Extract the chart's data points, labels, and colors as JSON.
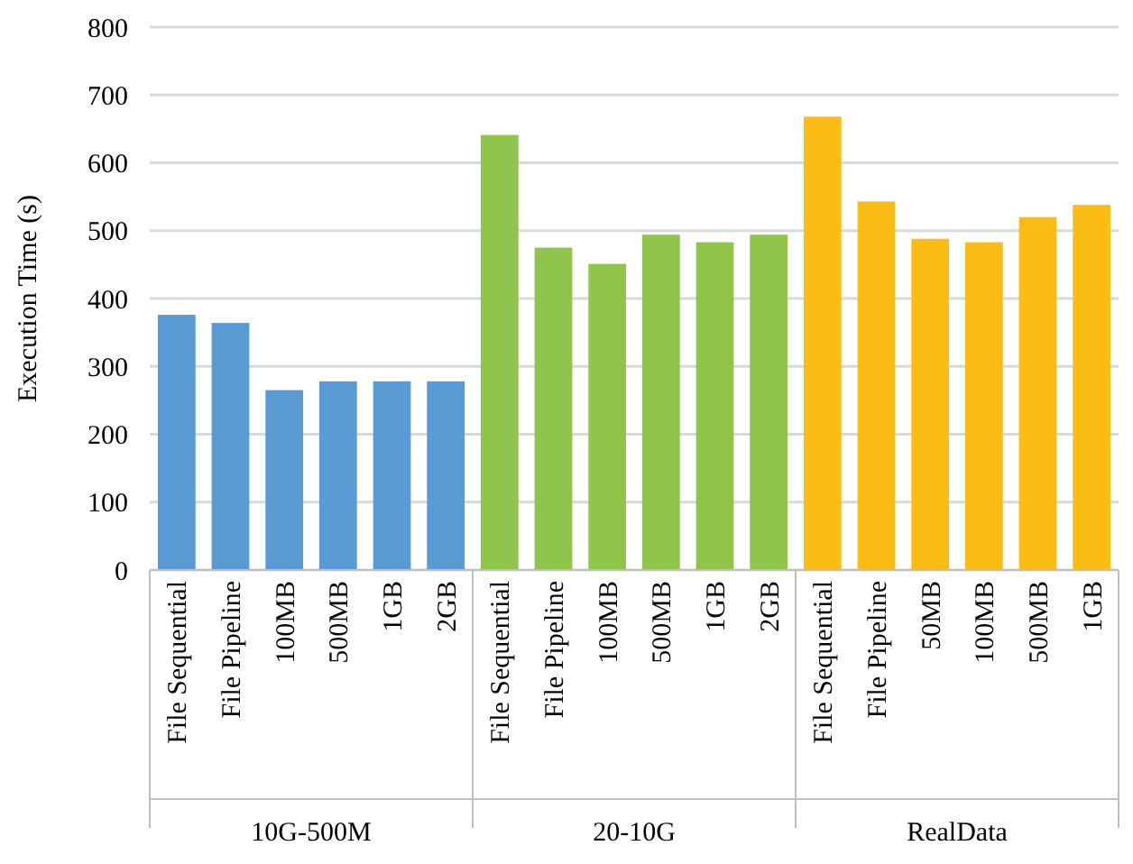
{
  "chart_data": {
    "type": "bar",
    "ylabel": "Execution Time (s)",
    "categories": [
      "File Sequential",
      "File Pipeline",
      "100MB",
      "500MB",
      "1GB",
      "2GB",
      "File Sequential",
      "File Pipeline",
      "100MB",
      "500MB",
      "1GB",
      "2GB",
      "File Sequential",
      "File Pipeline",
      "50MB",
      "100MB",
      "500MB",
      "1GB"
    ],
    "values": [
      376,
      364,
      265,
      278,
      278,
      278,
      641,
      475,
      451,
      494,
      483,
      494,
      668,
      543,
      488,
      483,
      520,
      538
    ],
    "colors": [
      "#5b9bd5",
      "#5b9bd5",
      "#5b9bd5",
      "#5b9bd5",
      "#5b9bd5",
      "#5b9bd5",
      "#8fc54a",
      "#8fc54a",
      "#8fc54a",
      "#8fc54a",
      "#8fc54a",
      "#8fc54a",
      "#fbbd14",
      "#fbbd14",
      "#fbbd14",
      "#fbbd14",
      "#fbbd14",
      "#fbbd14"
    ],
    "annotations": [
      "10G-500M",
      "20-10G",
      "RealData"
    ],
    "ylim": [
      0,
      800
    ],
    "yticks": [
      0,
      100,
      200,
      300,
      400,
      500,
      600,
      700,
      800
    ],
    "grid": "y"
  }
}
